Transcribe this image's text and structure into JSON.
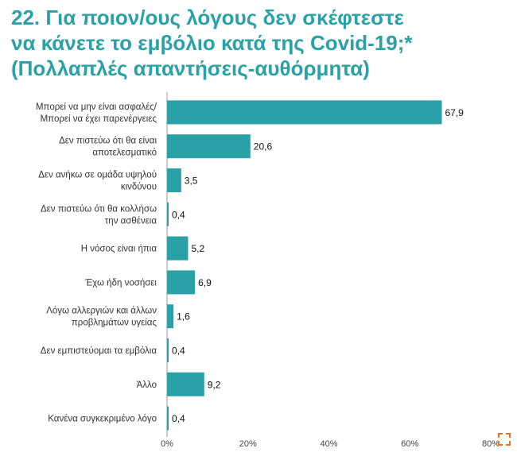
{
  "title_lines": [
    "22. Για ποιον/ους λόγους δεν σκέφτεστε",
    "να κάνετε το εμβόλιο κατά της Covid-19;*",
    "(Πολλαπλές απαντήσεις-αυθόρμητα)"
  ],
  "chart_data": {
    "type": "bar",
    "orientation": "horizontal",
    "title": "22. Για ποιον/ους λόγους δεν σκέφτεστε να κάνετε το εμβόλιο κατά της Covid-19;* (Πολλαπλές απαντήσεις-αυθόρμητα)",
    "categories": [
      [
        "Μπορεί να μην είναι ασφαλές/",
        "Μπορεί να έχει παρενέργειες"
      ],
      [
        "Δεν πιστεύω ότι θα είναι",
        "αποτελεσματικό"
      ],
      [
        "Δεν ανήκω σε ομάδα υψηλού",
        "κινδύνου"
      ],
      [
        "Δεν πιστεύω ότι θα κολλήσω",
        "την ασθένεια"
      ],
      [
        "Η νόσος είναι ήπια"
      ],
      [
        "Έχω ήδη νοσήσει"
      ],
      [
        "Λόγω αλλεργιών και άλλων",
        "προβλημάτων υγείας"
      ],
      [
        "Δεν εμπιστεύομαι τα εμβόλια"
      ],
      [
        "Άλλο"
      ],
      [
        "Κανένα συγκεκριμένο λόγο"
      ]
    ],
    "values": [
      67.9,
      20.6,
      3.5,
      0.4,
      5.2,
      6.9,
      1.6,
      0.4,
      9.2,
      0.4
    ],
    "value_labels": [
      "67,9",
      "20,6",
      "3,5",
      "0,4",
      "5,2",
      "6,9",
      "1,6",
      "0,4",
      "9,2",
      "0,4"
    ],
    "xlim": [
      0,
      80
    ],
    "xticks": [
      0,
      20,
      40,
      60,
      80
    ],
    "xtick_labels": [
      "0%",
      "20%",
      "40%",
      "60%",
      "80%"
    ],
    "xlabel": "",
    "ylabel": "",
    "grid": false,
    "bar_color": "#2aa1a6"
  },
  "colors": {
    "title": "#2aa1a6",
    "axis": "#999999",
    "icon": "#f07020"
  }
}
